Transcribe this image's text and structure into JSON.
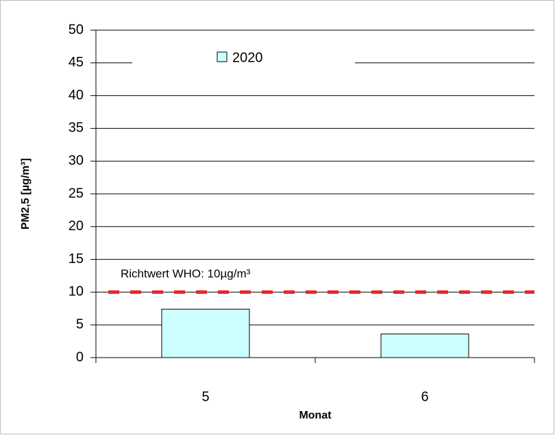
{
  "chart_data": {
    "type": "bar",
    "categories": [
      "5",
      "6"
    ],
    "series": [
      {
        "name": "2020",
        "color": "#ccffff",
        "values": [
          7.4,
          3.6
        ]
      }
    ],
    "ylim": [
      0,
      50
    ],
    "yticks": [
      0,
      5,
      10,
      15,
      20,
      25,
      30,
      35,
      40,
      45,
      50
    ],
    "grid": true,
    "y_label": "PM2,5 [µg/m³]",
    "x_label": "Monat",
    "reference_line": {
      "value": 10,
      "label": "Richtwert WHO: 10µg/m³",
      "color": "#e8262b"
    },
    "legend_position": "top"
  }
}
